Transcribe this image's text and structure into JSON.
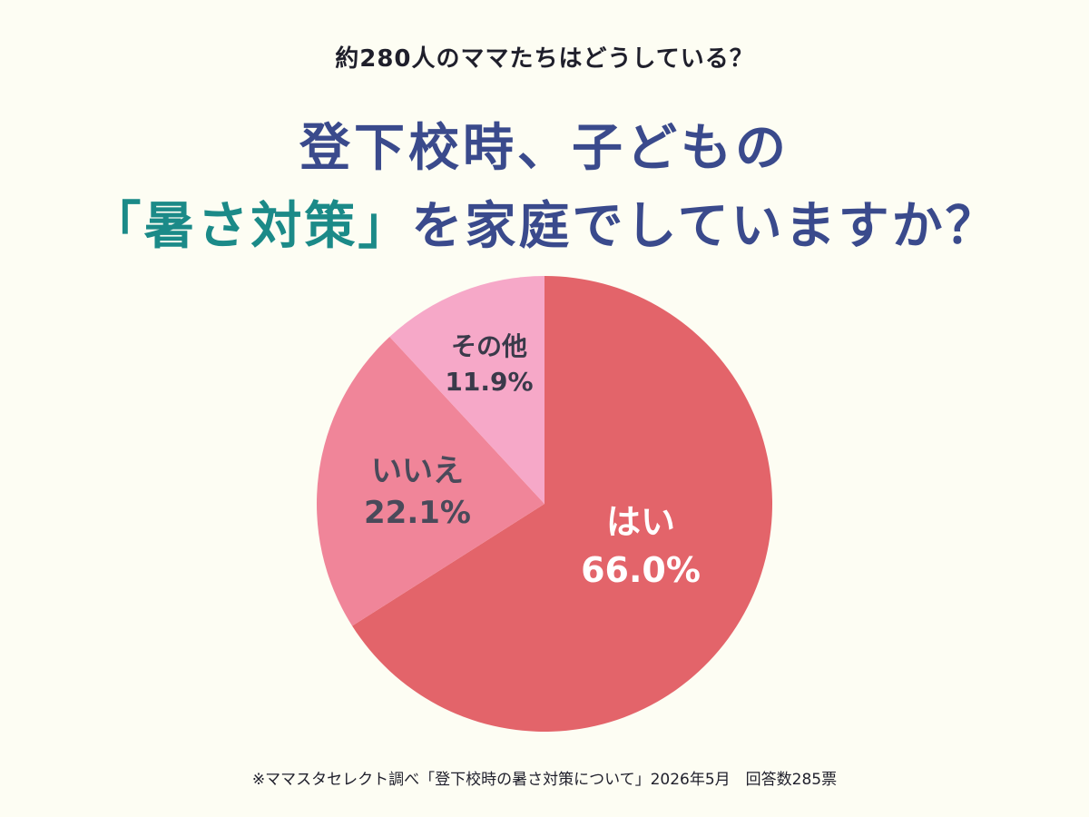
{
  "header": {
    "subtitle": "約280人のママたちはどうしている？",
    "title_line1": "登下校時、子どもの",
    "title_line2_highlight": "「暑さ対策」",
    "title_line2_rest": "を家庭でしていますか？"
  },
  "chart_data": {
    "type": "pie",
    "slices": [
      {
        "label": "はい",
        "value": 66.0,
        "value_label": "66.0%",
        "color": "#e3646a",
        "text_color": "#ffffff"
      },
      {
        "label": "いいえ",
        "value": 22.1,
        "value_label": "22.1%",
        "color": "#f08599",
        "text_color": "#4a4a5a"
      },
      {
        "label": "その他",
        "value": 11.9,
        "value_label": "11.9%",
        "color": "#f6a8c8",
        "text_color": "#3a3a4a"
      }
    ],
    "start": "top",
    "direction": "clockwise"
  },
  "footer": {
    "note": "※ママスタセレクト調べ「登下校時の暑さ対策について」2026年5月　回答数285票"
  }
}
